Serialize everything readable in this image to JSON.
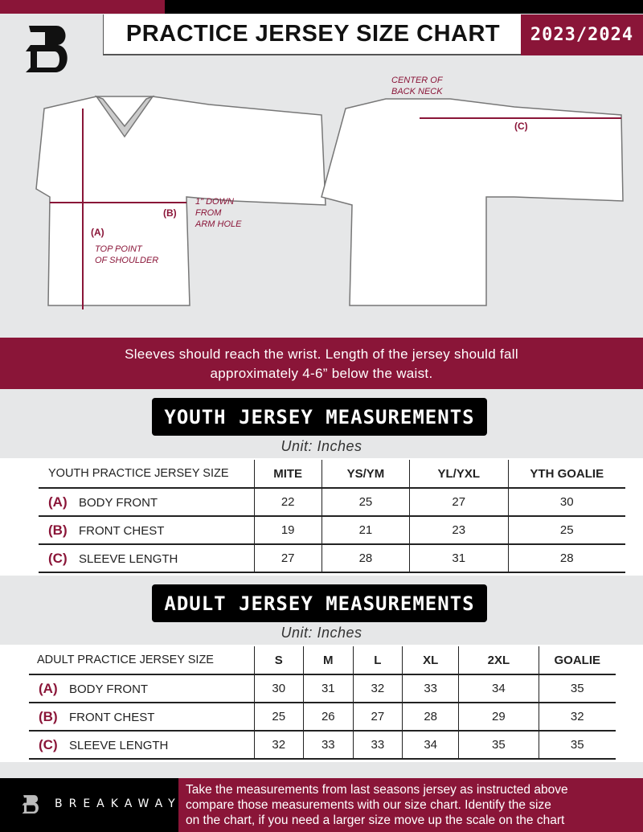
{
  "header": {
    "title": "PRACTICE JERSEY SIZE CHART",
    "season": "2023/2024"
  },
  "colors": {
    "accent": "#8a1538",
    "background": "#e6e7e8",
    "dark": "#000000"
  },
  "diagram": {
    "label_a": "(A)",
    "label_b": "(B)",
    "label_c": "(C)",
    "top_point": [
      "TOP POINT",
      "OF SHOULDER"
    ],
    "arm_hole": [
      "1\" DOWN",
      "FROM",
      "ARM HOLE"
    ],
    "back_neck": [
      "CENTER OF",
      "BACK NECK"
    ]
  },
  "note": [
    "Sleeves should reach the wrist. Length of the jersey should fall",
    "approximately 4-6” below the waist."
  ],
  "youth": {
    "title": "YOUTH JERSEY MEASUREMENTS",
    "unit": "Unit: Inches",
    "header": "YOUTH PRACTICE JERSEY SIZE",
    "sizes": [
      "MITE",
      "YS/YM",
      "YL/YXL",
      "YTH GOALIE"
    ],
    "rows": [
      {
        "code": "(A)",
        "name": "BODY FRONT",
        "values": [
          "22",
          "25",
          "27",
          "30"
        ]
      },
      {
        "code": "(B)",
        "name": "FRONT CHEST",
        "values": [
          "19",
          "21",
          "23",
          "25"
        ]
      },
      {
        "code": "(C)",
        "name": "SLEEVE LENGTH",
        "values": [
          "27",
          "28",
          "31",
          "28"
        ]
      }
    ]
  },
  "adult": {
    "title": "ADULT JERSEY MEASUREMENTS",
    "unit": "Unit: Inches",
    "header": "ADULT PRACTICE JERSEY SIZE",
    "sizes": [
      "S",
      "M",
      "L",
      "XL",
      "2XL",
      "GOALIE"
    ],
    "rows": [
      {
        "code": "(A)",
        "name": "BODY FRONT",
        "values": [
          "30",
          "31",
          "32",
          "33",
          "34",
          "35"
        ]
      },
      {
        "code": "(B)",
        "name": "FRONT CHEST",
        "values": [
          "25",
          "26",
          "27",
          "28",
          "29",
          "32"
        ]
      },
      {
        "code": "(C)",
        "name": "SLEEVE LENGTH",
        "values": [
          "32",
          "33",
          "33",
          "34",
          "35",
          "35"
        ]
      }
    ]
  },
  "footer": {
    "brand": "BREAKAWAY",
    "message": [
      "Take the measurements from last seasons jersey as instructed above",
      "compare those measurements  with our size chart. Identify the size",
      "on the chart, if you need a larger size move up the scale on the chart"
    ]
  }
}
